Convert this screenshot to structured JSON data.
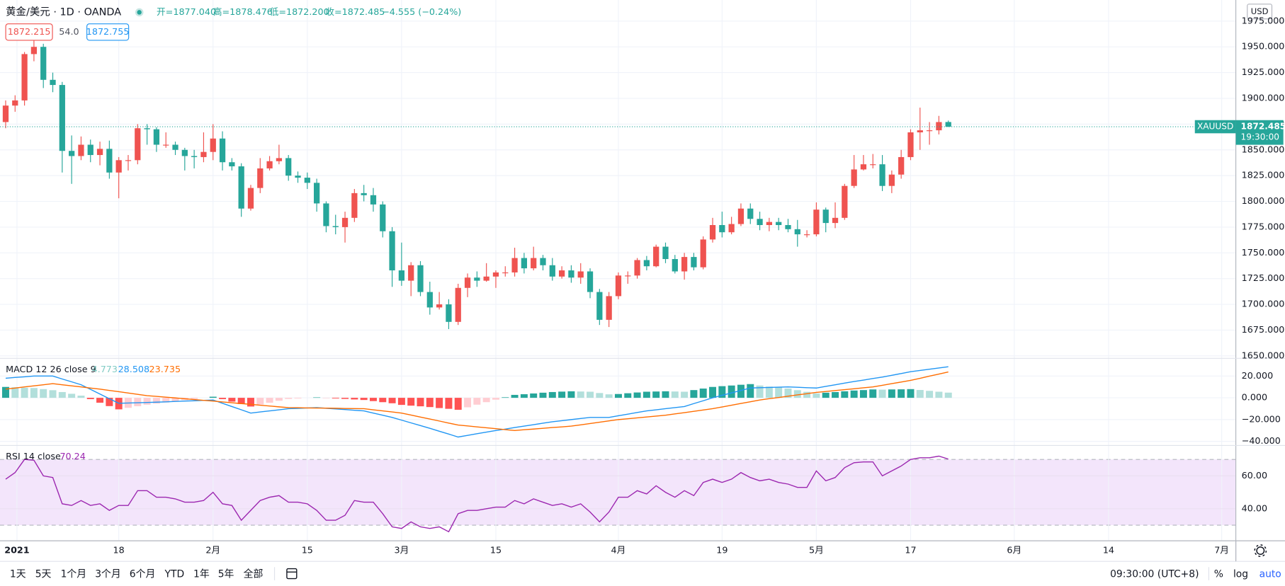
{
  "chart_data": {
    "type": "candlestick",
    "title": "黄金/美元 · 1D · OANDA",
    "header_ohlc": [
      "开=1877.040",
      "高=1878.476",
      "低=1872.200",
      "收=1872.485",
      "−4.555 (−0.24%)"
    ],
    "bid_ask": [
      "1872.215",
      "54.0",
      "1872.755"
    ],
    "symbol": "XAUUSD",
    "countdown": "19:30:00",
    "currency": "USD",
    "up_color": "#ef5350",
    "down_color": "#26a69a",
    "grid": true,
    "open": [
      1877,
      1893,
      1898,
      1943,
      1950,
      1918,
      1913,
      1849,
      1844,
      1855,
      1845,
      1851,
      1828,
      1840,
      1840,
      1871,
      1870,
      1855,
      1855,
      1850,
      1844,
      1843,
      1848,
      1861,
      1838,
      1834,
      1793,
      1813,
      1832,
      1839,
      1842,
      1825,
      1823,
      1818,
      1798,
      1776,
      1775,
      1784,
      1808,
      1806,
      1797,
      1771,
      1733,
      1723,
      1738,
      1712,
      1697,
      1700,
      1683,
      1716,
      1726,
      1723,
      1727,
      1731,
      1731,
      1745,
      1735,
      1745,
      1738,
      1727,
      1733,
      1726,
      1732,
      1712,
      1685,
      1708,
      1728,
      1728,
      1743,
      1737,
      1756,
      1744,
      1732,
      1746,
      1736,
      1763,
      1777,
      1770,
      1778,
      1793,
      1783,
      1777,
      1780,
      1777,
      1773,
      1768,
      1768,
      1792,
      1779,
      1784,
      1815,
      1831,
      1836,
      1836,
      1815,
      1826,
      1843,
      1867,
      1869,
      1869,
      1877.04
    ],
    "high": [
      1898,
      1903,
      1945,
      1959,
      1953,
      1925,
      1916,
      1864,
      1863,
      1860,
      1858,
      1859,
      1843,
      1845,
      1875,
      1875,
      1872,
      1867,
      1858,
      1852,
      1850,
      1867,
      1875,
      1868,
      1842,
      1837,
      1816,
      1842,
      1844,
      1855,
      1845,
      1829,
      1828,
      1822,
      1800,
      1787,
      1790,
      1812,
      1816,
      1813,
      1800,
      1775,
      1760,
      1741,
      1742,
      1722,
      1712,
      1705,
      1720,
      1730,
      1732,
      1740,
      1733,
      1737,
      1755,
      1750,
      1756,
      1748,
      1745,
      1737,
      1738,
      1740,
      1735,
      1715,
      1712,
      1731,
      1732,
      1745,
      1747,
      1758,
      1760,
      1748,
      1750,
      1750,
      1766,
      1784,
      1790,
      1785,
      1798,
      1798,
      1790,
      1784,
      1784,
      1783,
      1782,
      1772,
      1799,
      1794,
      1799,
      1817,
      1845,
      1845,
      1846,
      1845,
      1830,
      1850,
      1870,
      1891,
      1877,
      1883,
      1878.476
    ],
    "low": [
      1871,
      1887,
      1893,
      1936,
      1910,
      1906,
      1828,
      1817,
      1840,
      1838,
      1835,
      1822,
      1803,
      1830,
      1836,
      1855,
      1848,
      1852,
      1845,
      1830,
      1832,
      1838,
      1840,
      1830,
      1830,
      1785,
      1791,
      1808,
      1830,
      1836,
      1820,
      1818,
      1812,
      1790,
      1770,
      1768,
      1760,
      1780,
      1800,
      1790,
      1765,
      1717,
      1718,
      1708,
      1708,
      1690,
      1695,
      1676,
      1680,
      1707,
      1717,
      1722,
      1716,
      1727,
      1727,
      1730,
      1733,
      1733,
      1723,
      1725,
      1721,
      1720,
      1706,
      1680,
      1678,
      1705,
      1720,
      1725,
      1733,
      1736,
      1740,
      1730,
      1724,
      1733,
      1734,
      1760,
      1765,
      1768,
      1776,
      1778,
      1772,
      1771,
      1772,
      1770,
      1756,
      1765,
      1766,
      1770,
      1774,
      1782,
      1813,
      1830,
      1832,
      1810,
      1808,
      1822,
      1840,
      1850,
      1855,
      1865,
      1872.2
    ],
    "close": [
      1893,
      1898,
      1943,
      1950,
      1918,
      1913,
      1849,
      1844,
      1855,
      1845,
      1851,
      1828,
      1840,
      1840,
      1871,
      1870,
      1855,
      1855,
      1850,
      1844,
      1843,
      1848,
      1861,
      1838,
      1834,
      1793,
      1813,
      1832,
      1839,
      1842,
      1825,
      1823,
      1818,
      1798,
      1776,
      1775,
      1784,
      1808,
      1806,
      1797,
      1771,
      1733,
      1723,
      1738,
      1712,
      1697,
      1700,
      1683,
      1716,
      1726,
      1723,
      1727,
      1731,
      1731,
      1745,
      1735,
      1745,
      1738,
      1727,
      1733,
      1726,
      1732,
      1712,
      1685,
      1708,
      1728,
      1728,
      1743,
      1737,
      1756,
      1744,
      1732,
      1746,
      1736,
      1763,
      1777,
      1770,
      1778,
      1793,
      1783,
      1777,
      1780,
      1777,
      1773,
      1768,
      1768,
      1792,
      1779,
      1784,
      1815,
      1831,
      1836,
      1836,
      1815,
      1826,
      1843,
      1867,
      1869,
      1869,
      1877,
      1872.485
    ],
    "ylim": [
      1648.4,
      1995.5
    ],
    "yticks": [
      {
        "value": 1650,
        "label": "1650.000"
      },
      {
        "value": 1675,
        "label": "1675.000"
      },
      {
        "value": 1700,
        "label": "1700.000"
      },
      {
        "value": 1725,
        "label": "1725.000"
      },
      {
        "value": 1750,
        "label": "1750.000"
      },
      {
        "value": 1775,
        "label": "1775.000"
      },
      {
        "value": 1800,
        "label": "1800.000"
      },
      {
        "value": 1825,
        "label": "1825.000"
      },
      {
        "value": 1850,
        "label": "1850.000"
      },
      {
        "value": 1875,
        "label": "1875.000"
      },
      {
        "value": 1900,
        "label": "1900.000"
      },
      {
        "value": 1925,
        "label": "1925.000"
      },
      {
        "value": 1950,
        "label": "1950.000"
      },
      {
        "value": 1975,
        "label": "1975.000"
      }
    ],
    "xlim": [
      -0.6,
      130.5
    ],
    "xticks": [
      {
        "value": 1.2,
        "label": "2021"
      },
      {
        "value": 12,
        "label": "18"
      },
      {
        "value": 22,
        "label": "2月"
      },
      {
        "value": 32,
        "label": "15"
      },
      {
        "value": 42,
        "label": "3月"
      },
      {
        "value": 52,
        "label": "15"
      },
      {
        "value": 65,
        "label": "4月"
      },
      {
        "value": 76,
        "label": "19"
      },
      {
        "value": 86,
        "label": "5月"
      },
      {
        "value": 96,
        "label": "17"
      },
      {
        "value": 107,
        "label": "6月"
      },
      {
        "value": 117,
        "label": "14"
      },
      {
        "value": 129,
        "label": "7月"
      }
    ],
    "macd": {
      "name": "MACD 12 26 close 9",
      "ylim": [
        -43,
        35.5
      ],
      "yticks": [
        {
          "value": 20,
          "label": "20.000"
        },
        {
          "value": 0,
          "label": "0.000"
        },
        {
          "value": -20,
          "label": "−20.000"
        },
        {
          "value": -40,
          "label": "−40.000"
        }
      ],
      "histogram": {
        "colors": [
          "#26a69a",
          "#b2dfdb",
          "#ff5252",
          "#ffcdd2"
        ],
        "values": [
          10,
          9.7,
          9.3,
          9,
          8,
          7,
          5.3,
          3.7,
          2,
          -1.2,
          -4.5,
          -7.6,
          -10.6,
          -9.2,
          -7.7,
          -6.3,
          -5.3,
          -4.3,
          -3.2,
          -2.1,
          -1.1,
          0,
          1,
          -1.2,
          -3.5,
          -5.7,
          -8,
          -6.2,
          -4.5,
          -2.7,
          -1,
          -0.6,
          0,
          0.4,
          -0.1,
          -0.6,
          -1,
          -1.5,
          -2,
          -3,
          -4,
          -5,
          -6.5,
          -7.2,
          -7.8,
          -8.5,
          -9.4,
          -10.1,
          -11,
          -8.7,
          -6.3,
          -4,
          -1.7,
          0.5,
          2.7,
          3.3,
          4,
          4.7,
          5.3,
          5.7,
          6,
          5.8,
          5.6,
          4.4,
          3.2,
          3.5,
          4.2,
          4.9,
          5.6,
          5.8,
          6,
          5.8,
          5.6,
          7.1,
          8.5,
          10,
          10.7,
          11.3,
          12,
          12.6,
          11.3,
          10.3,
          9.5,
          8.5,
          7,
          5.5,
          4,
          4.7,
          5.3,
          6,
          6.7,
          7.1,
          7.7,
          7.5,
          7.7,
          7.8,
          8,
          7.2,
          6.4,
          5.6,
          4.773
        ]
      },
      "macd_line": {
        "color": "#2196f3",
        "values": [
          18,
          18.7,
          19.3,
          20,
          20,
          20,
          17.3,
          14.7,
          12,
          7.8,
          3.5,
          -0.8,
          -5,
          -4.8,
          -4.5,
          -4.3,
          -4,
          -3.7,
          -3.3,
          -3,
          -2.7,
          -2.3,
          -2,
          -5,
          -8,
          -11,
          -14,
          -13,
          -12,
          -11,
          -10,
          -9.7,
          -9.3,
          -9,
          -9.6,
          -10.2,
          -10.8,
          -11.4,
          -12,
          -14,
          -16,
          -18,
          -20.5,
          -23,
          -25.5,
          -28,
          -30.7,
          -33.3,
          -36,
          -34.5,
          -33,
          -31.5,
          -30,
          -28.7,
          -27.3,
          -26,
          -24.7,
          -23.3,
          -22,
          -21,
          -20,
          -19,
          -18,
          -18,
          -18,
          -16.5,
          -15,
          -13.5,
          -12,
          -11,
          -10,
          -9,
          -8,
          -5.3,
          -2.7,
          0,
          2.3,
          4.5,
          6.8,
          9,
          9.3,
          9.5,
          9.8,
          10,
          9.7,
          9.3,
          9,
          10.5,
          12,
          13.5,
          15,
          16.3,
          17.7,
          19,
          20.7,
          22.3,
          24,
          25.1,
          26.3,
          27.4,
          28.508
        ]
      },
      "signal_line": {
        "color": "#ff6d00",
        "values": [
          8,
          9,
          10,
          11,
          12,
          13,
          12,
          11,
          10,
          9,
          8,
          6.8,
          5.6,
          4.4,
          3.2,
          2,
          1.3,
          0.6,
          -0.1,
          -0.9,
          -1.6,
          -2.3,
          -3,
          -3.8,
          -4.5,
          -5.3,
          -6,
          -6.8,
          -7.5,
          -8.3,
          -9,
          -9.1,
          -9.3,
          -9.4,
          -9.5,
          -9.6,
          -9.8,
          -9.9,
          -10,
          -11,
          -12,
          -13,
          -14,
          -15.8,
          -17.7,
          -19.5,
          -21.3,
          -23.2,
          -25,
          -25.8,
          -26.7,
          -27.5,
          -28.3,
          -29.2,
          -30,
          -29.3,
          -28.7,
          -28,
          -27.3,
          -26.7,
          -26,
          -24.8,
          -23.6,
          -22.4,
          -21.2,
          -20,
          -19.2,
          -18.4,
          -17.6,
          -16.8,
          -16,
          -14.8,
          -13.6,
          -12.4,
          -11.2,
          -10,
          -8.4,
          -6.8,
          -5.2,
          -3.6,
          -2,
          -0.8,
          0.3,
          1.5,
          2.7,
          3.8,
          5,
          5.8,
          6.7,
          7.5,
          8.3,
          9.2,
          10,
          11.5,
          13,
          14.5,
          16,
          17.9,
          19.9,
          21.8,
          23.735
        ]
      }
    },
    "rsi": {
      "name": "RSI 14 close",
      "color": "#9c27b0",
      "band_color": "#f3e5fb",
      "bands": [
        70,
        30
      ],
      "ylim": [
        20.5,
        78
      ],
      "yticks": [
        {
          "value": 60,
          "label": "60.00"
        },
        {
          "value": 40,
          "label": "40.00"
        }
      ],
      "values": [
        58,
        62,
        70,
        69.5,
        60,
        59,
        43,
        42,
        45,
        42,
        43,
        39,
        42,
        42,
        51,
        51,
        47,
        47,
        46,
        44,
        44,
        45,
        50,
        43,
        42,
        33,
        39,
        45,
        47,
        48,
        44,
        44,
        43,
        39,
        33,
        33,
        36,
        45,
        44,
        44,
        37,
        29,
        28,
        32,
        29,
        28,
        29,
        26,
        37,
        39,
        39,
        40,
        41,
        41,
        45,
        43,
        46,
        44,
        42,
        43,
        41,
        43,
        38,
        32,
        38,
        47,
        47,
        51,
        49,
        54,
        50,
        47,
        51,
        48,
        56,
        58,
        56,
        58,
        62,
        59,
        57,
        58,
        56,
        55,
        53,
        53,
        63,
        57,
        59,
        65,
        68,
        68.5,
        68.5,
        60,
        63,
        66,
        70,
        71,
        71,
        72,
        70.24
      ]
    }
  },
  "toolbar": {
    "ranges": [
      "1天",
      "5天",
      "1个月",
      "3个月",
      "6个月",
      "YTD",
      "1年",
      "5年",
      "全部"
    ],
    "timezone": "09:30:00 (UTC+8)",
    "options": [
      "%",
      "log",
      "auto"
    ]
  }
}
